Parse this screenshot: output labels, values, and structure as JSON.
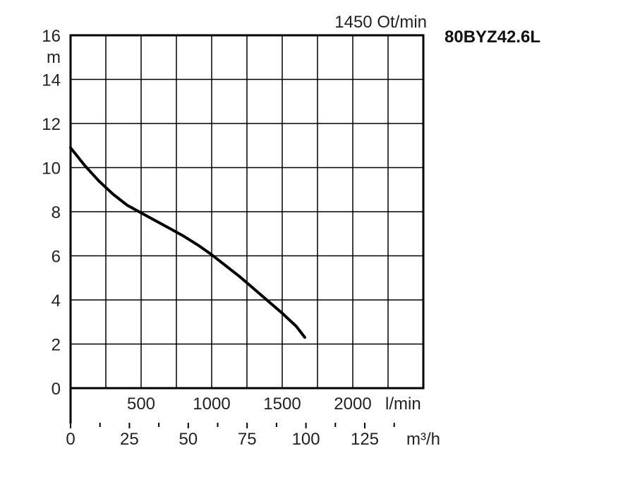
{
  "chart_data": {
    "type": "line",
    "speed_label": "1450 Ot/min",
    "model": "80BYZ42.6L",
    "y_unit": "m",
    "ylim": [
      0,
      16
    ],
    "y_ticks": [
      "0",
      "2",
      "4",
      "6",
      "8",
      "10",
      "12",
      "14",
      "16"
    ],
    "x_lpm_ticks": [
      "500",
      "1000",
      "1500",
      "2000"
    ],
    "x_lpm_unit": "l/min",
    "x_m3h_ticks": [
      "0",
      "25",
      "50",
      "75",
      "100",
      "125"
    ],
    "x_m3h_unit": "m³/h",
    "xlim_lpm": [
      0,
      2500
    ],
    "grid": true,
    "series": [
      {
        "x": [
          0,
          100,
          200,
          300,
          400,
          500,
          600,
          700,
          800,
          900,
          1000,
          1100,
          1200,
          1300,
          1400,
          1500,
          1600,
          1660
        ],
        "y": [
          10.9,
          10.1,
          9.4,
          8.8,
          8.3,
          7.95,
          7.6,
          7.25,
          6.9,
          6.5,
          6.05,
          5.55,
          5.05,
          4.5,
          3.95,
          3.4,
          2.8,
          2.3
        ]
      }
    ]
  }
}
